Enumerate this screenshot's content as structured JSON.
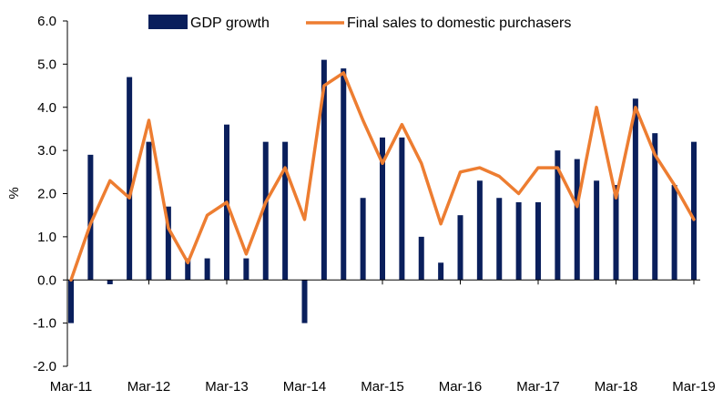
{
  "chart_data": {
    "type": "bar",
    "title": "",
    "ylabel": "%",
    "xlabel": "",
    "ylim": [
      -2.0,
      6.0
    ],
    "yticks": [
      "-2.0",
      "-1.0",
      "0.0",
      "1.0",
      "2.0",
      "3.0",
      "4.0",
      "5.0",
      "6.0"
    ],
    "x_tick_labels": [
      "Mar-11",
      "Mar-12",
      "Mar-13",
      "Mar-14",
      "Mar-15",
      "Mar-16",
      "Mar-17",
      "Mar-18",
      "Mar-19"
    ],
    "grid": false,
    "legend_position": "top",
    "categories": [
      "Mar-11",
      "Jun-11",
      "Sep-11",
      "Dec-11",
      "Mar-12",
      "Jun-12",
      "Sep-12",
      "Dec-12",
      "Mar-13",
      "Jun-13",
      "Sep-13",
      "Dec-13",
      "Mar-14",
      "Jun-14",
      "Sep-14",
      "Dec-14",
      "Mar-15",
      "Jun-15",
      "Sep-15",
      "Dec-15",
      "Mar-16",
      "Jun-16",
      "Sep-16",
      "Dec-16",
      "Mar-17",
      "Jun-17",
      "Sep-17",
      "Dec-17",
      "Mar-18",
      "Jun-18",
      "Sep-18",
      "Dec-18",
      "Mar-19"
    ],
    "series": [
      {
        "name": "GDP growth",
        "type": "bar",
        "color": "#0a1f5c",
        "values": [
          -1.0,
          2.9,
          -0.1,
          4.7,
          3.2,
          1.7,
          0.5,
          0.5,
          3.6,
          0.5,
          3.2,
          3.2,
          -1.0,
          5.1,
          4.9,
          1.9,
          3.3,
          3.3,
          1.0,
          0.4,
          1.5,
          2.3,
          1.9,
          1.8,
          1.8,
          3.0,
          2.8,
          2.3,
          2.2,
          4.2,
          3.4,
          2.2,
          3.2
        ]
      },
      {
        "name": "Final sales to domestic purchasers",
        "type": "line",
        "color": "#ed7d31",
        "values": [
          0.0,
          1.3,
          2.3,
          1.9,
          3.7,
          1.2,
          0.4,
          1.5,
          1.8,
          0.6,
          1.8,
          2.6,
          1.4,
          4.5,
          4.8,
          3.7,
          2.7,
          3.6,
          2.7,
          1.3,
          2.5,
          2.6,
          2.4,
          2.0,
          2.6,
          2.6,
          1.7,
          4.0,
          1.9,
          4.0,
          2.9,
          2.2,
          1.4
        ]
      }
    ]
  }
}
